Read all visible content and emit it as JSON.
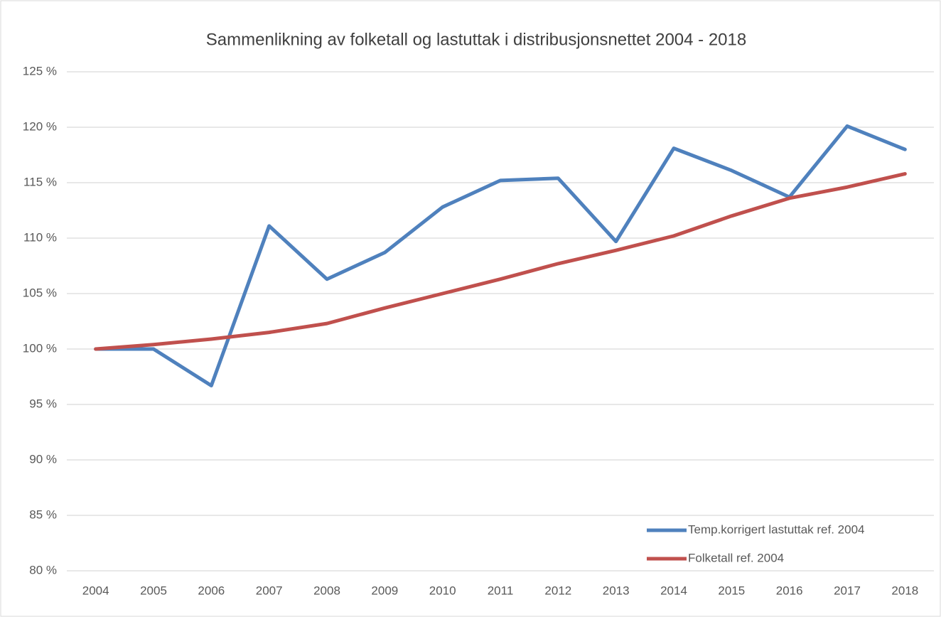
{
  "chart_data": {
    "type": "line",
    "title": "Sammenlikning av folketall og lastuttak i distribusjonsnettet 2004 - 2018",
    "categories": [
      "2004",
      "2005",
      "2006",
      "2007",
      "2008",
      "2009",
      "2010",
      "2011",
      "2012",
      "2013",
      "2014",
      "2015",
      "2016",
      "2017",
      "2018"
    ],
    "series": [
      {
        "name": "Temp.korrigert lastuttak ref. 2004",
        "color": "#4f81bd",
        "values": [
          100,
          100,
          96.7,
          111.1,
          106.3,
          108.7,
          112.8,
          115.2,
          115.4,
          109.7,
          118.1,
          116.1,
          113.7,
          120.1,
          118.0
        ]
      },
      {
        "name": "Folketall ref. 2004",
        "color": "#c0504d",
        "values": [
          100,
          100.4,
          100.9,
          101.5,
          102.3,
          103.7,
          105.0,
          106.3,
          107.7,
          108.9,
          110.2,
          112.0,
          113.6,
          114.6,
          115.8
        ]
      }
    ],
    "ylim": [
      80,
      125
    ],
    "yticks": [
      {
        "value": 80,
        "label": "80 %"
      },
      {
        "value": 85,
        "label": "85 %"
      },
      {
        "value": 90,
        "label": "90 %"
      },
      {
        "value": 95,
        "label": "95 %"
      },
      {
        "value": 100,
        "label": "100 %"
      },
      {
        "value": 105,
        "label": "105 %"
      },
      {
        "value": 110,
        "label": "110 %"
      },
      {
        "value": 115,
        "label": "115 %"
      },
      {
        "value": 120,
        "label": "120 %"
      },
      {
        "value": 125,
        "label": "125 %"
      }
    ],
    "grid": true,
    "legend": "lower-right"
  }
}
